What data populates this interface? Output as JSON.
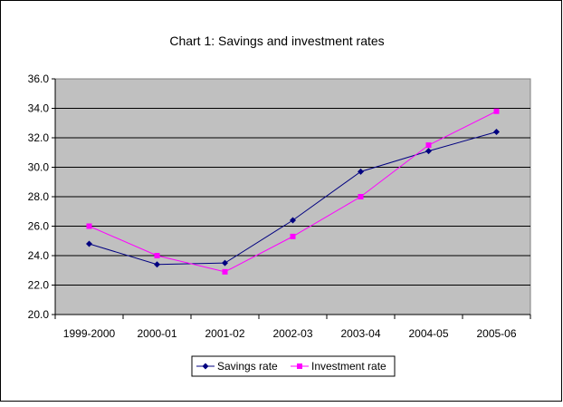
{
  "chart_data": {
    "type": "line",
    "title": "Chart 1: Savings and investment rates",
    "xlabel": "",
    "ylabel": "",
    "categories": [
      "1999-2000",
      "2000-01",
      "2001-02",
      "2002-03",
      "2003-04",
      "2004-05",
      "2005-06"
    ],
    "ylim": [
      20.0,
      36.0
    ],
    "yticks": [
      "20.0",
      "22.0",
      "24.0",
      "26.0",
      "28.0",
      "30.0",
      "32.0",
      "34.0",
      "36.0"
    ],
    "grid": true,
    "legend_position": "bottom",
    "series": [
      {
        "name": "Savings rate",
        "color": "#000080",
        "marker": "diamond",
        "values": [
          24.8,
          23.4,
          23.5,
          26.4,
          29.7,
          31.1,
          32.4
        ]
      },
      {
        "name": "Investment rate",
        "color": "#ff00ff",
        "marker": "square",
        "values": [
          26.0,
          24.0,
          22.9,
          25.3,
          28.0,
          31.5,
          33.8
        ]
      }
    ],
    "plot_background": "#c0c0c0"
  }
}
